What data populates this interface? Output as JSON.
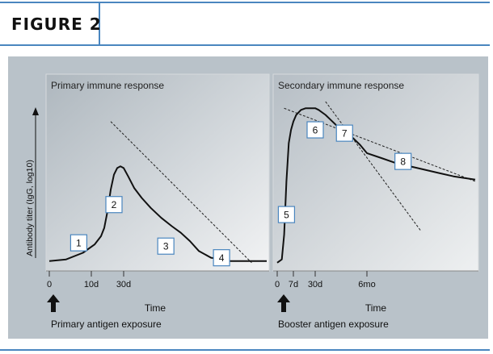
{
  "header": {
    "figure_label": "FIGURE 2"
  },
  "chart_data": [
    {
      "type": "line",
      "title": "Primary immune response",
      "xlabel": "Time",
      "ylabel": "Antibody titer (IgG, log10)",
      "x_ticks": [
        "0",
        "10d",
        "30d"
      ],
      "x_unit": "days",
      "y_scale": "log",
      "series": [
        {
          "x": [
            0,
            4,
            8,
            12,
            16,
            18,
            20,
            22,
            24,
            26,
            28,
            30,
            33,
            37,
            42,
            48,
            55,
            62,
            68,
            74,
            80,
            88,
            95,
            100,
            108,
            115,
            125
          ],
          "y": [
            0.04,
            0.05,
            0.09,
            0.14,
            0.19,
            0.24,
            0.34,
            0.47,
            0.56,
            0.6,
            0.61,
            0.6,
            0.55,
            0.48,
            0.42,
            0.36,
            0.3,
            0.25,
            0.21,
            0.16,
            0.1,
            0.06,
            0.05,
            0.04,
            0.04,
            0.04,
            0.04
          ]
        }
      ],
      "trend_lines": [
        {
          "x": [
            22,
            115
          ],
          "y": [
            0.88,
            0.03
          ]
        }
      ],
      "annotations": [
        {
          "label": "1",
          "x": 7,
          "y": 0.15
        },
        {
          "label": "2",
          "x": 24,
          "y": 0.38
        },
        {
          "label": "3",
          "x": 58,
          "y": 0.13
        },
        {
          "label": "4",
          "x": 95,
          "y": 0.06
        }
      ],
      "arrow_label": "Primary antigen exposure"
    },
    {
      "type": "line",
      "title": "Secondary immune response",
      "xlabel": "Time",
      "x_ticks": [
        "0",
        "7d",
        "30d",
        "6mo"
      ],
      "x_unit": "days",
      "y_scale": "log",
      "series": [
        {
          "x": [
            0,
            2,
            3,
            4,
            5,
            6,
            7,
            10,
            15,
            20,
            25,
            30,
            40,
            60,
            80,
            100,
            120,
            140,
            160,
            180,
            200,
            220,
            250,
            280,
            300,
            330
          ],
          "y": [
            0.03,
            0.05,
            0.2,
            0.52,
            0.75,
            0.83,
            0.88,
            0.92,
            0.95,
            0.96,
            0.96,
            0.96,
            0.95,
            0.92,
            0.88,
            0.84,
            0.81,
            0.78,
            0.74,
            0.69,
            0.66,
            0.63,
            0.6,
            0.57,
            0.55,
            0.53
          ]
        }
      ],
      "trend_lines": [
        {
          "x": [
            3,
            330
          ],
          "y": [
            0.96,
            0.52
          ]
        },
        {
          "x": [
            60,
            255
          ],
          "y": [
            1.0,
            0.22
          ]
        }
      ],
      "annotations": [
        {
          "label": "5",
          "x": 4,
          "y": 0.32
        },
        {
          "label": "6",
          "x": 30,
          "y": 0.83
        },
        {
          "label": "7",
          "x": 115,
          "y": 0.81
        },
        {
          "label": "8",
          "x": 230,
          "y": 0.64
        }
      ],
      "arrow_label": "Booster antigen exposure"
    }
  ]
}
